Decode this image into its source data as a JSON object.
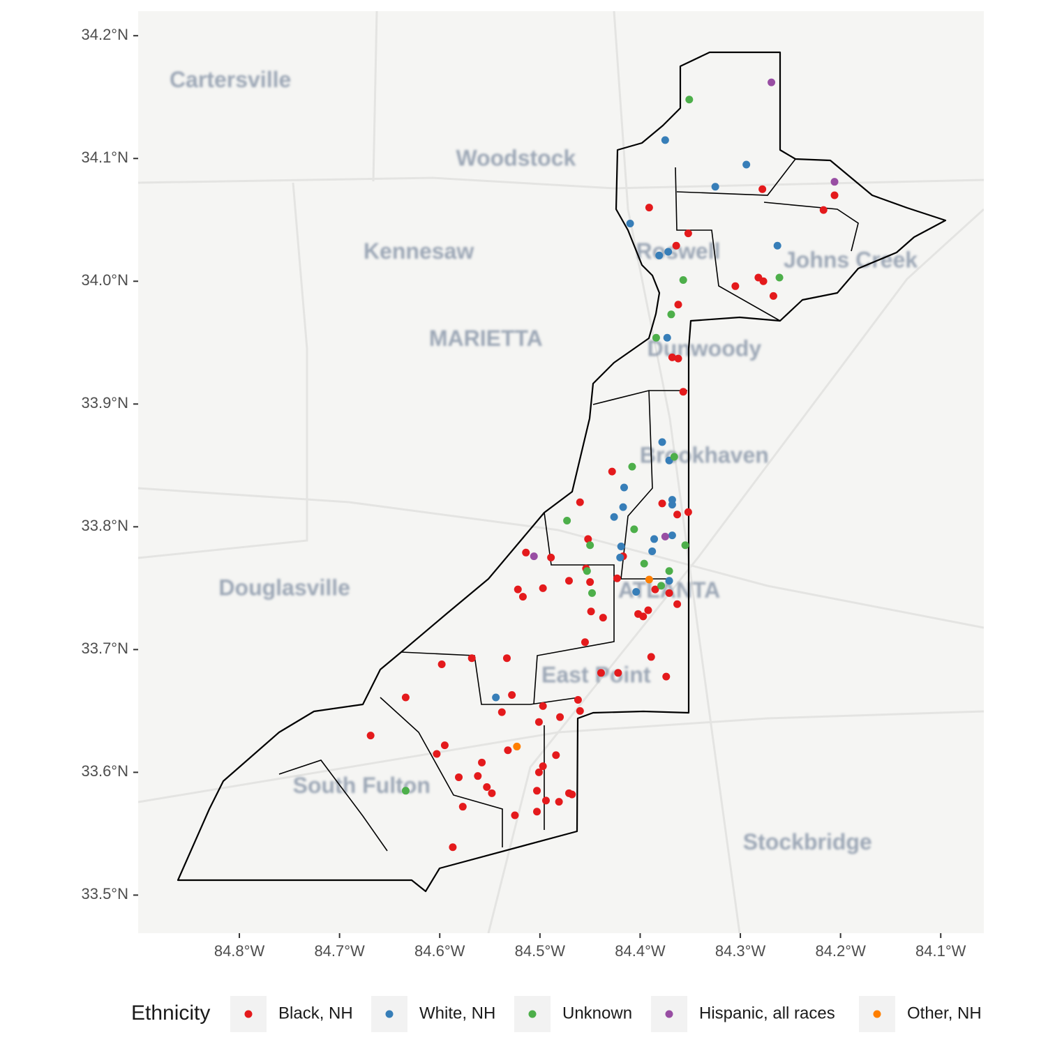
{
  "chart_data": {
    "type": "scatter",
    "xlim": [
      -84.901,
      -84.057
    ],
    "ylim": [
      33.469,
      34.22
    ],
    "xticks": [
      {
        "value": -84.8,
        "label": "84.8°W"
      },
      {
        "value": -84.7,
        "label": "84.7°W"
      },
      {
        "value": -84.6,
        "label": "84.6°W"
      },
      {
        "value": -84.5,
        "label": "84.5°W"
      },
      {
        "value": -84.4,
        "label": "84.4°W"
      },
      {
        "value": -84.3,
        "label": "84.3°W"
      },
      {
        "value": -84.2,
        "label": "84.2°W"
      },
      {
        "value": -84.1,
        "label": "84.1°W"
      }
    ],
    "yticks": [
      {
        "value": 33.5,
        "label": "33.5°N"
      },
      {
        "value": 33.6,
        "label": "33.6°N"
      },
      {
        "value": 33.7,
        "label": "33.7°N"
      },
      {
        "value": 33.8,
        "label": "33.8°N"
      },
      {
        "value": 33.9,
        "label": "33.9°N"
      },
      {
        "value": 34.0,
        "label": "34.0°N"
      },
      {
        "value": 34.1,
        "label": "34.1°N"
      },
      {
        "value": 34.2,
        "label": "34.2°N"
      }
    ],
    "legend_title": "Ethnicity",
    "legend_position": "bottom",
    "places": [
      {
        "text": "Cartersville",
        "lon": -84.809,
        "lat": 34.163
      },
      {
        "text": "Woodstock",
        "lon": -84.524,
        "lat": 34.099
      },
      {
        "text": "Kennesaw",
        "lon": -84.621,
        "lat": 34.023
      },
      {
        "text": "MARIETTA",
        "lon": -84.554,
        "lat": 33.952
      },
      {
        "text": "Roswell",
        "lon": -84.362,
        "lat": 34.023
      },
      {
        "text": "Johns Creek",
        "lon": -84.19,
        "lat": 34.016
      },
      {
        "text": "Dunwoody",
        "lon": -84.336,
        "lat": 33.944
      },
      {
        "text": "Brookhaven",
        "lon": -84.336,
        "lat": 33.857
      },
      {
        "text": "Douglasville",
        "lon": -84.755,
        "lat": 33.749
      },
      {
        "text": "ATLANTA",
        "lon": -84.371,
        "lat": 33.747
      },
      {
        "text": "East Point",
        "lon": -84.444,
        "lat": 33.678
      },
      {
        "text": "South Fulton",
        "lon": -84.678,
        "lat": 33.588
      },
      {
        "text": "Stockbridge",
        "lon": -84.233,
        "lat": 33.542
      }
    ],
    "series": [
      {
        "name": "Black, NH",
        "color": "#e41a1c",
        "x": [
          -84.278,
          -84.206,
          -84.217,
          -84.391,
          -84.352,
          -84.364,
          -84.305,
          -84.282,
          -84.277,
          -84.267,
          -84.362,
          -84.368,
          -84.362,
          -84.357,
          -84.428,
          -84.46,
          -84.378,
          -84.363,
          -84.352,
          -84.452,
          -84.514,
          -84.489,
          -84.417,
          -84.454,
          -84.471,
          -84.45,
          -84.423,
          -84.522,
          -84.517,
          -84.497,
          -84.385,
          -84.371,
          -84.363,
          -84.449,
          -84.392,
          -84.402,
          -84.397,
          -84.437,
          -84.455,
          -84.389,
          -84.568,
          -84.533,
          -84.598,
          -84.439,
          -84.422,
          -84.374,
          -84.634,
          -84.528,
          -84.462,
          -84.538,
          -84.497,
          -84.46,
          -84.48,
          -84.501,
          -84.669,
          -84.595,
          -84.532,
          -84.603,
          -84.484,
          -84.558,
          -84.497,
          -84.501,
          -84.581,
          -84.562,
          -84.553,
          -84.548,
          -84.503,
          -84.471,
          -84.468,
          -84.494,
          -84.481,
          -84.577,
          -84.525,
          -84.503,
          -84.587
        ],
        "y": [
          34.075,
          34.07,
          34.058,
          34.06,
          34.039,
          34.029,
          33.996,
          34.003,
          34.0,
          33.988,
          33.981,
          33.938,
          33.937,
          33.91,
          33.845,
          33.82,
          33.819,
          33.81,
          33.812,
          33.79,
          33.779,
          33.775,
          33.776,
          33.766,
          33.756,
          33.755,
          33.758,
          33.749,
          33.743,
          33.75,
          33.749,
          33.746,
          33.737,
          33.731,
          33.732,
          33.729,
          33.727,
          33.726,
          33.706,
          33.694,
          33.693,
          33.693,
          33.688,
          33.681,
          33.681,
          33.678,
          33.661,
          33.663,
          33.659,
          33.649,
          33.654,
          33.65,
          33.645,
          33.641,
          33.63,
          33.622,
          33.618,
          33.615,
          33.614,
          33.608,
          33.605,
          33.6,
          33.596,
          33.597,
          33.588,
          33.583,
          33.585,
          33.583,
          33.582,
          33.577,
          33.576,
          33.572,
          33.565,
          33.568,
          33.539
        ]
      },
      {
        "name": "White, NH",
        "color": "#377eb8",
        "x": [
          -84.375,
          -84.294,
          -84.325,
          -84.41,
          -84.372,
          -84.381,
          -84.263,
          -84.373,
          -84.378,
          -84.371,
          -84.368,
          -84.368,
          -84.416,
          -84.417,
          -84.426,
          -84.419,
          -84.386,
          -84.368,
          -84.388,
          -84.42,
          -84.371,
          -84.404,
          -84.544
        ],
        "y": [
          34.115,
          34.095,
          34.077,
          34.047,
          34.024,
          34.021,
          34.029,
          33.954,
          33.869,
          33.854,
          33.822,
          33.818,
          33.832,
          33.816,
          33.808,
          33.784,
          33.79,
          33.793,
          33.78,
          33.775,
          33.756,
          33.747,
          33.661
        ]
      },
      {
        "name": "Unknown",
        "color": "#4daf4a",
        "x": [
          -84.351,
          -84.357,
          -84.261,
          -84.369,
          -84.384,
          -84.366,
          -84.408,
          -84.473,
          -84.406,
          -84.45,
          -84.355,
          -84.396,
          -84.453,
          -84.371,
          -84.448,
          -84.379,
          -84.634
        ],
        "y": [
          34.148,
          34.001,
          34.003,
          33.973,
          33.954,
          33.857,
          33.849,
          33.805,
          33.798,
          33.785,
          33.785,
          33.77,
          33.764,
          33.764,
          33.746,
          33.752,
          33.585
        ]
      },
      {
        "name": "Hispanic, all races",
        "color": "#984ea3",
        "x": [
          -84.269,
          -84.206,
          -84.506,
          -84.375
        ],
        "y": [
          34.162,
          34.081,
          33.776,
          33.792
        ]
      },
      {
        "name": "Other, NH",
        "color": "#ff7f00",
        "x": [
          -84.391,
          -84.523
        ],
        "y": [
          33.757,
          33.621
        ]
      }
    ]
  }
}
